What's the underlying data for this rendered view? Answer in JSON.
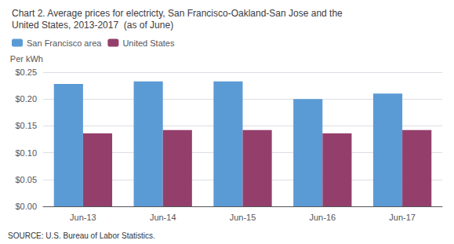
{
  "chart_data": {
    "type": "bar",
    "title": "Chart 2. Average prices for electricty, San Francisco-Oakland-San Jose and the\nUnited States, 2013-2017  (as of June)",
    "ylabel": "Per kWh",
    "annotations": [
      "SOURCE: U.S. Bureau of Labor Statistics."
    ],
    "categories": [
      "Jun-13",
      "Jun-14",
      "Jun-15",
      "Jun-16",
      "Jun-17"
    ],
    "series": [
      {
        "name": "San Francisco area",
        "color": "#5B9BD5",
        "values": [
          0.228,
          0.233,
          0.233,
          0.2,
          0.21
        ]
      },
      {
        "name": "United States",
        "color": "#943F6B",
        "values": [
          0.136,
          0.142,
          0.142,
          0.136,
          0.142
        ]
      }
    ],
    "ylim": [
      0.0,
      0.25
    ],
    "yticks": [
      {
        "value": 0.0,
        "label": "$0.00"
      },
      {
        "value": 0.05,
        "label": "$0.05"
      },
      {
        "value": 0.1,
        "label": "$0.10"
      },
      {
        "value": 0.15,
        "label": "$0.15"
      },
      {
        "value": 0.2,
        "label": "$0.20"
      },
      {
        "value": 0.25,
        "label": "$0.25"
      }
    ],
    "grid": true,
    "legend": "upper left"
  }
}
